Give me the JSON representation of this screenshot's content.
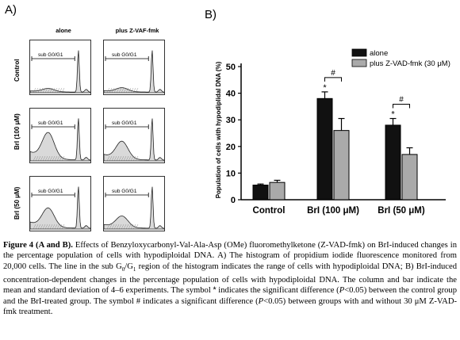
{
  "panel_a": {
    "letter": "A)",
    "column_headers": [
      "alone",
      "plus Z-VAF-fmk"
    ],
    "row_labels": [
      "Control",
      "BrI (100 μM)",
      "BrI (50 μM)"
    ],
    "gate_label": "sub G0/G1"
  },
  "panel_b": {
    "letter": "B)"
  },
  "chart_data": {
    "type": "bar",
    "ylabel": "Population of cells with  hypodiplidal DNA (%)",
    "ylim": [
      0,
      50
    ],
    "yticks": [
      0,
      10,
      20,
      30,
      40,
      50
    ],
    "categories": [
      "Control",
      "BrI (100 μM)",
      "BrI (50 μM)"
    ],
    "series": [
      {
        "name": "alone",
        "color": "#111111",
        "values": [
          5.5,
          38,
          28
        ],
        "errors": [
          0.4,
          2.5,
          2.5
        ]
      },
      {
        "name": "plus Z-VAD-fmk (30 μM)",
        "color": "#aaaaaa",
        "values": [
          6.5,
          26,
          17
        ],
        "errors": [
          0.8,
          4.5,
          2.5
        ]
      }
    ],
    "annotations": {
      "star": "*",
      "hash": "#"
    },
    "legend_position": "top-right"
  },
  "caption": {
    "title": "Figure 4 (A and B).",
    "text_1": " Effects of Benzyloxycarbonyl-Val-Ala-Asp (OMe) fluoromethylketone (Z-VAD-fmk) on BrI-induced changes in the percentage population of cells with hypodiploidal DNA. A) The histogram of propidium iodide fluorescence monitored from 20,000 cells. The line in the sub G",
    "sub_0": "0",
    "slash": "/G",
    "sub_1": "1",
    "text_2": " region of the histogram indicates the range of cells with hypodiploidal DNA; B) BrI-induced concentration-dependent changes in the percentage population of cells with hypodiploidal DNA. The column and bar indicate the mean and standard deviation of 4–6 experiments. The symbol ",
    "star_symbol": "*",
    "text_3": " indicates the significant difference (",
    "p_1": "P",
    "text_4": "<0.05) between the control group and the BrI-treated group. The symbol # indicates a significant difference (",
    "p_2": "P",
    "text_5": "<0.05) between groups with and without 30 μM Z-VAD-fmk treatment."
  }
}
